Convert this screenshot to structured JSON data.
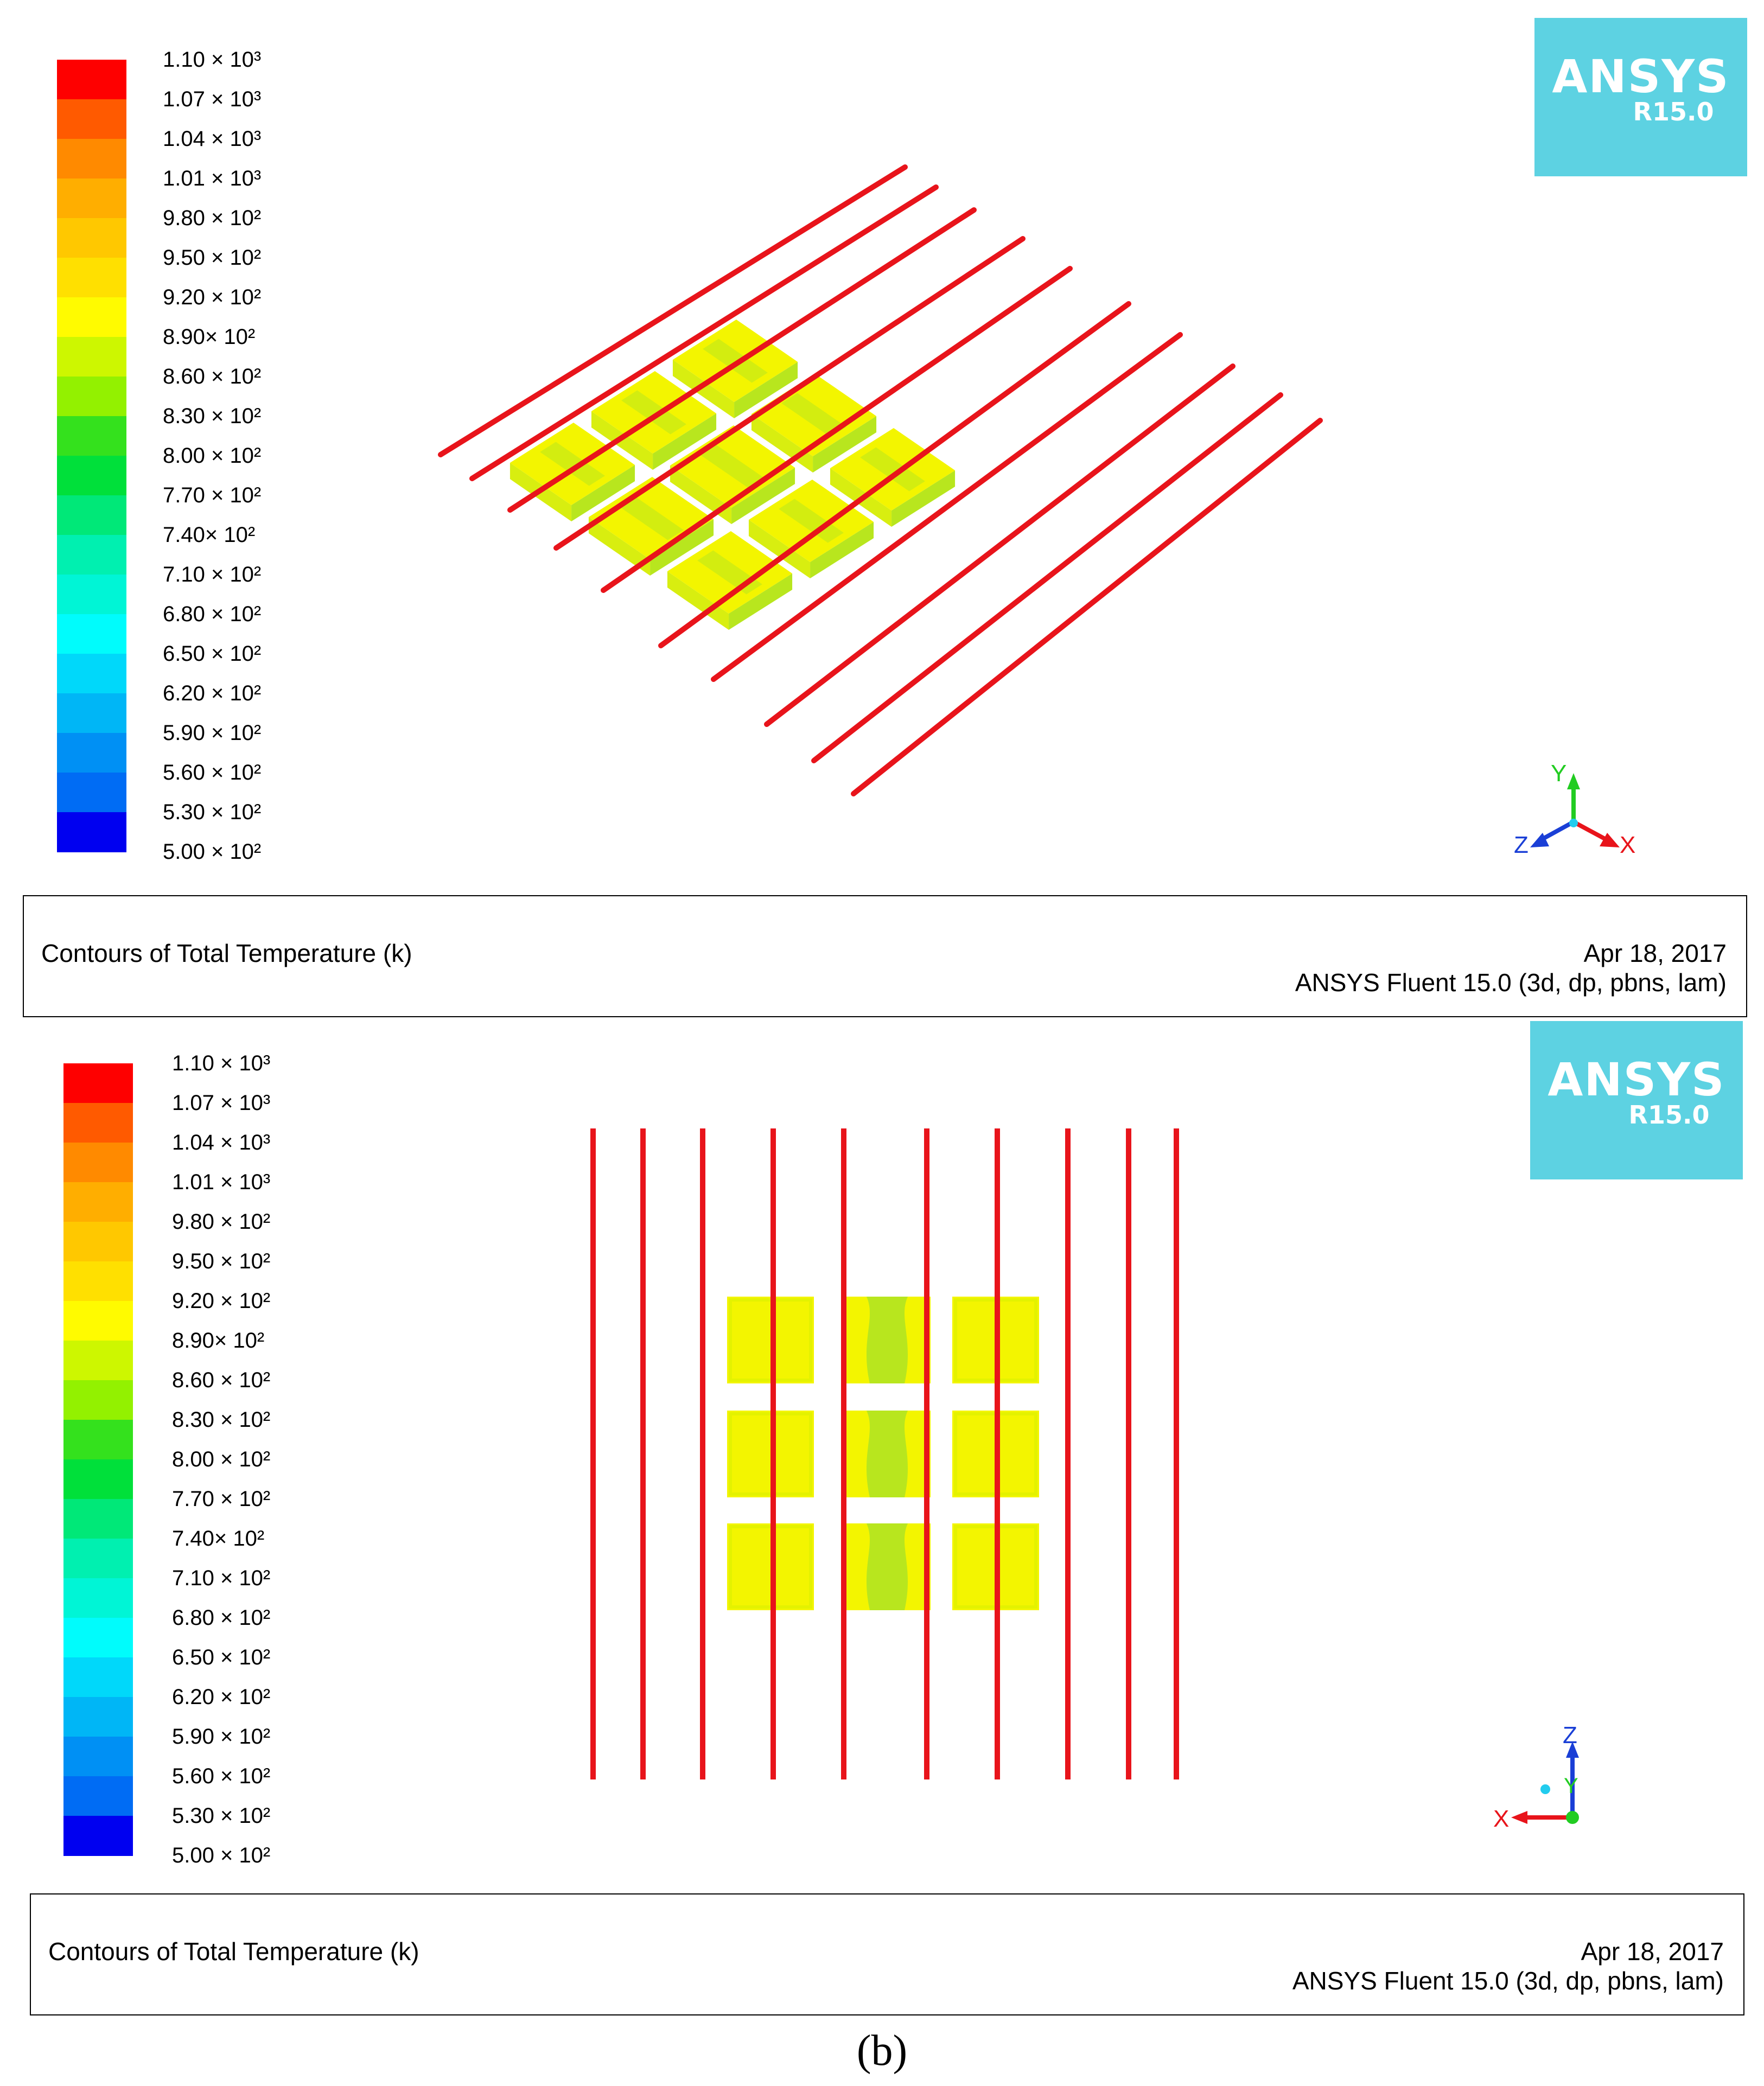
{
  "legend": {
    "labels": [
      "1.10 × 10³",
      "1.07 × 10³",
      "1.04 × 10³",
      "1.01 × 10³",
      "9.80 × 10²",
      "9.50 × 10²",
      "9.20 × 10²",
      "8.90× 10²",
      "8.60 × 10²",
      "8.30 × 10²",
      "8.00 × 10²",
      "7.70 × 10²",
      "7.40× 10²",
      "7.10 × 10²",
      "6.80 × 10²",
      "6.50 × 10²",
      "6.20 × 10²",
      "5.90 × 10²",
      "5.60 × 10²",
      "5.30 × 10²",
      "5.00 × 10²"
    ],
    "colors": [
      "#fe0000",
      "#ff5a00",
      "#ff8a00",
      "#ffae00",
      "#ffc800",
      "#ffe000",
      "#fffb00",
      "#cdf700",
      "#93f100",
      "#34e11d",
      "#00e03a",
      "#00e878",
      "#00f0b0",
      "#00f5d6",
      "#00fcfc",
      "#00d8fa",
      "#00b6f6",
      "#0090f4",
      "#006cf4",
      "#0000f0"
    ]
  },
  "logo": {
    "brand": "ANSYS",
    "version": "R15.0"
  },
  "footer": {
    "title": "Contours of Total Temperature (k)",
    "date": "Apr 18, 2017",
    "solver": "ANSYS Fluent 15.0 (3d, dp, pbns, lam)"
  },
  "axes": {
    "panel_a": [
      "Y",
      "Z",
      "X"
    ],
    "panel_b": [
      "Z",
      "Y",
      "X"
    ]
  },
  "caption": "(b)",
  "colors": {
    "wire": "#e8141b",
    "block": "#f3f500",
    "block_green": "#b8e61e",
    "logo_bg": "#5dd2e2"
  }
}
